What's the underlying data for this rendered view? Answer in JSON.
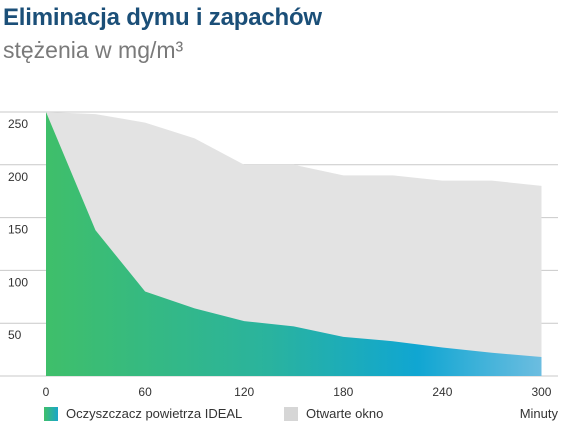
{
  "title": "Eliminacja dymu i zapachów",
  "subtitle": "stężenia w mg/m³",
  "chart_data": {
    "type": "area",
    "x": [
      0,
      30,
      60,
      90,
      120,
      150,
      180,
      210,
      240,
      270,
      300
    ],
    "xticks": [
      0,
      60,
      120,
      180,
      240,
      300
    ],
    "yticks": [
      50,
      100,
      150,
      200,
      250
    ],
    "xlim": [
      0,
      310
    ],
    "ylim": [
      0,
      250
    ],
    "xunit_label": "Minuty",
    "grid": true,
    "legend_position": "bottom",
    "series": [
      {
        "name": "Otwarte okno",
        "color": "#e3e3e3",
        "values": [
          250,
          248,
          240,
          225,
          200,
          200,
          190,
          190,
          185,
          185,
          180
        ]
      },
      {
        "name": "Oczyszczacz powietrza IDEAL",
        "color": "#2bb3a0",
        "values": [
          250,
          138,
          80,
          64,
          52,
          47,
          37,
          33,
          27,
          22,
          18
        ]
      }
    ]
  }
}
